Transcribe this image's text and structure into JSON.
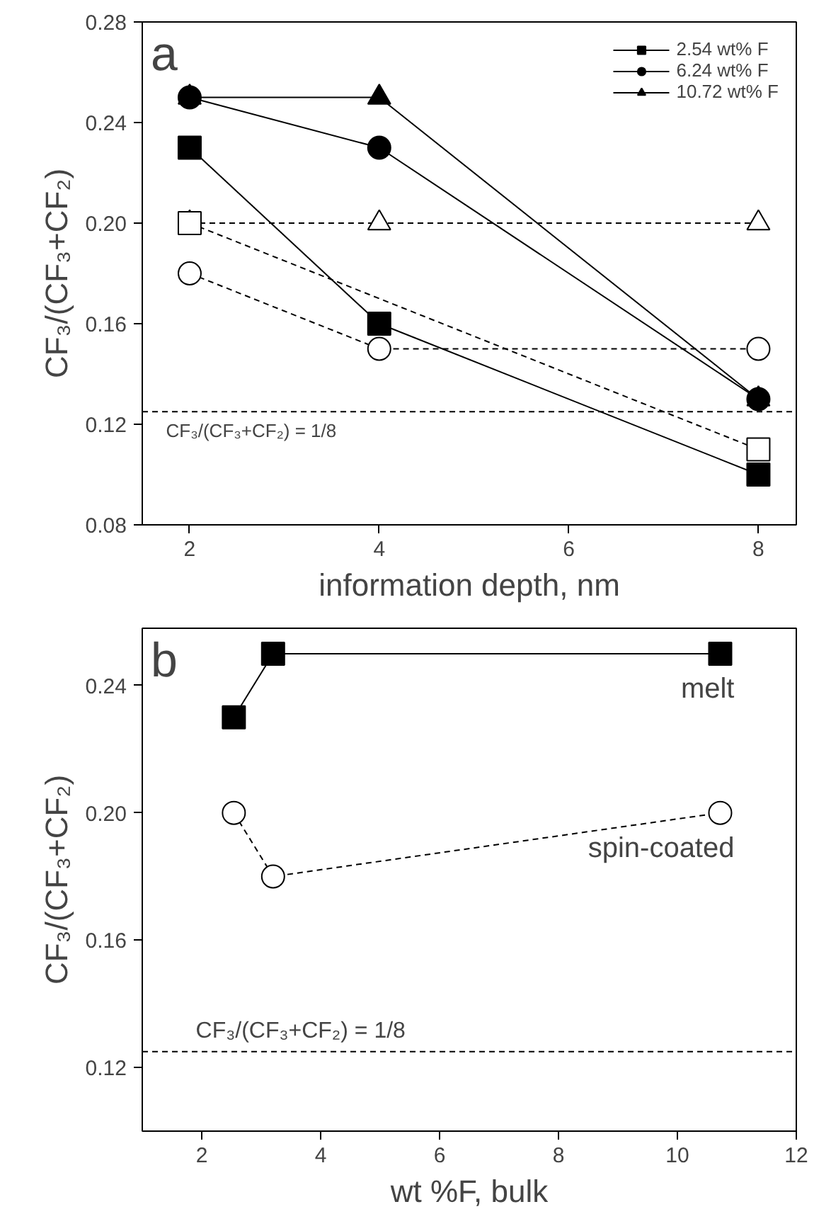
{
  "chart_data": [
    {
      "type": "line",
      "xlabel": "information depth, nm",
      "ylabel": "CF₃/(CF₃+CF₂)",
      "xlim": [
        1.5,
        8.4
      ],
      "xticks": [
        2,
        4,
        6,
        8
      ],
      "ylim": [
        0.08,
        0.28
      ],
      "yticks": [
        {
          "value": 0.08,
          "label": "0.08"
        },
        {
          "value": 0.12,
          "label": "0.12"
        },
        {
          "value": 0.16,
          "label": "0.16"
        },
        {
          "value": 0.2,
          "label": "0.20"
        },
        {
          "value": 0.24,
          "label": "0.24"
        },
        {
          "value": 0.28,
          "label": "0.28"
        }
      ],
      "grid": false,
      "legend": "top right",
      "annotations": [
        "a",
        {
          "text": "CF₃/(CF₃+CF₂) = 1/8",
          "x": 1.75,
          "y": 0.125
        }
      ],
      "ref_lines": [
        {
          "axis": "y",
          "value": 0.125,
          "line_style": "dashed"
        }
      ],
      "series": [
        {
          "name": "2.54 wt% F",
          "color": "#000000",
          "marker": "square",
          "line_style": "solid",
          "x": [
            2,
            4,
            8
          ],
          "values": [
            0.23,
            0.16,
            0.1
          ]
        },
        {
          "color": "#000000",
          "marker": "square",
          "line_style": "dashed",
          "x": [
            2,
            8
          ],
          "values": [
            0.2,
            0.11
          ]
        },
        {
          "name": "6.24 wt% F",
          "color": "#000000",
          "marker": "circle",
          "line_style": "solid",
          "x": [
            2,
            4,
            8
          ],
          "values": [
            0.25,
            0.23,
            0.13
          ]
        },
        {
          "color": "#000000",
          "marker": "circle",
          "line_style": "dashed",
          "x": [
            2,
            4,
            8
          ],
          "values": [
            0.18,
            0.15,
            0.15
          ]
        },
        {
          "name": "10.72 wt% F",
          "color": "#000000",
          "marker": "triangle",
          "line_style": "solid",
          "x": [
            2,
            4,
            8
          ],
          "values": [
            0.25,
            0.25,
            0.13
          ]
        },
        {
          "color": "#000000",
          "marker": "triangle",
          "line_style": "dashed",
          "x": [
            2,
            4,
            8
          ],
          "values": [
            0.2,
            0.2,
            0.2
          ]
        }
      ]
    },
    {
      "type": "line",
      "xlabel": "wt %F, bulk",
      "ylabel": "CF₃/(CF₃+CF₂)",
      "xlim": [
        1,
        12
      ],
      "xticks": [
        2,
        4,
        6,
        8,
        10,
        12
      ],
      "ylim": [
        0.1,
        0.258
      ],
      "yticks": [
        {
          "value": 0.12,
          "label": "0.12"
        },
        {
          "value": 0.16,
          "label": "0.16"
        },
        {
          "value": 0.2,
          "label": "0.20"
        },
        {
          "value": 0.24,
          "label": "0.24"
        }
      ],
      "grid": false,
      "legend": false,
      "annotations": [
        "b",
        {
          "text": "CF₃/(CF₃+CF₂) = 1/8",
          "x": 1.9,
          "y": 0.125
        }
      ],
      "ref_lines": [
        {
          "axis": "y",
          "value": 0.125,
          "line_style": "dashed"
        }
      ],
      "series": [
        {
          "name": "melt",
          "color": "#000000",
          "marker": "square",
          "line_style": "solid",
          "x": [
            2.54,
            3.2,
            10.72
          ],
          "values": [
            0.23,
            0.25,
            0.25
          ]
        },
        {
          "name": "spin-coated",
          "color": "#000000",
          "marker": "circle",
          "line_style": "dashed",
          "x": [
            2.54,
            3.2,
            10.72
          ],
          "values": [
            0.2,
            0.18,
            0.2
          ]
        }
      ]
    }
  ]
}
